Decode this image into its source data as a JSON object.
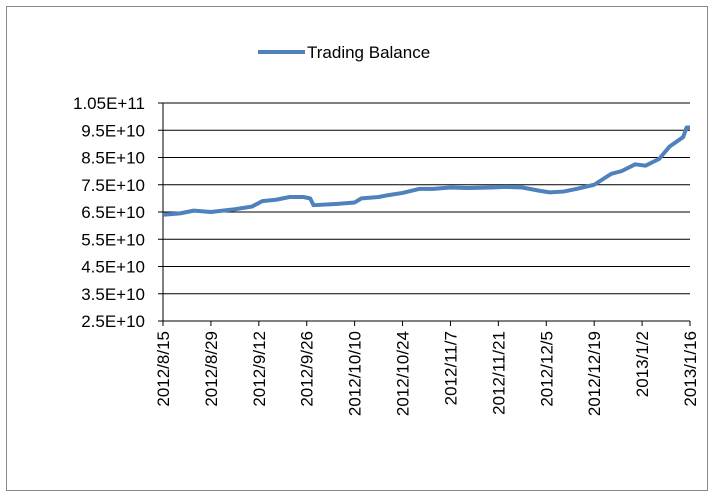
{
  "chart_data": {
    "type": "line",
    "x": [
      "2012/8/15",
      "2012/8/20",
      "2012/8/24",
      "2012/8/29",
      "2012/9/5",
      "2012/9/10",
      "2012/9/13",
      "2012/9/17",
      "2012/9/21",
      "2012/9/25",
      "2012/9/27",
      "2012/9/28",
      "2012/10/5",
      "2012/10/10",
      "2012/10/12",
      "2012/10/17",
      "2012/10/19",
      "2012/10/24",
      "2012/10/29",
      "2012/11/2",
      "2012/11/7",
      "2012/11/12",
      "2012/11/19",
      "2012/11/23",
      "2012/11/28",
      "2012/12/3",
      "2012/12/6",
      "2012/12/10",
      "2012/12/14",
      "2012/12/19",
      "2012/12/24",
      "2012/12/27",
      "2012/12/31",
      "2013/1/3",
      "2013/1/7",
      "2013/1/10",
      "2013/1/14",
      "2013/1/15",
      "2013/1/16"
    ],
    "series": [
      {
        "name": "Trading Balance",
        "color": "#4f81bd",
        "values": [
          64000000000,
          64500000000,
          65500000000,
          65000000000,
          66000000000,
          67000000000,
          69000000000,
          69500000000,
          70500000000,
          70500000000,
          70000000000,
          67500000000,
          68000000000,
          68500000000,
          70000000000,
          70500000000,
          71000000000,
          72000000000,
          73500000000,
          73500000000,
          74000000000,
          73800000000,
          74000000000,
          74200000000,
          74000000000,
          72800000000,
          72200000000,
          72500000000,
          73500000000,
          75000000000,
          79000000000,
          80000000000,
          82500000000,
          82000000000,
          84500000000,
          89000000000,
          92500000000,
          96000000000,
          96000000000
        ]
      }
    ],
    "ylim": [
      25000000000,
      105000000000
    ],
    "yticks": [
      {
        "value": 25000000000,
        "label": "2.5E+10"
      },
      {
        "value": 35000000000,
        "label": "3.5E+10"
      },
      {
        "value": 45000000000,
        "label": "4.5E+10"
      },
      {
        "value": 55000000000,
        "label": "5.5E+10"
      },
      {
        "value": 65000000000,
        "label": "6.5E+10"
      },
      {
        "value": 75000000000,
        "label": "7.5E+10"
      },
      {
        "value": 85000000000,
        "label": "8.5E+10"
      },
      {
        "value": 95000000000,
        "label": "9.5E+10"
      },
      {
        "value": 105000000000,
        "label": "1.05E+11"
      }
    ],
    "xlim": [
      "2012/8/15",
      "2013/1/16"
    ],
    "xticks": [
      "2012/8/15",
      "2012/8/29",
      "2012/9/12",
      "2012/9/26",
      "2012/10/10",
      "2012/10/24",
      "2012/11/7",
      "2012/11/21",
      "2012/12/5",
      "2012/12/19",
      "2013/1/2",
      "2013/1/16"
    ],
    "grid": true,
    "legend": "top"
  }
}
